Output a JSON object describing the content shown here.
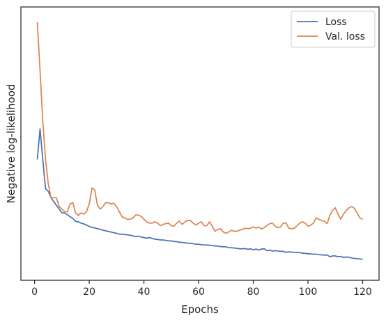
{
  "chart_data": {
    "type": "line",
    "title": "",
    "xlabel": "Epochs",
    "ylabel": "Negative log-likelihood",
    "xlim": [
      -5,
      126
    ],
    "ylim": [
      0,
      1
    ],
    "y_scale_note": "no y tick labels shown; y values are relative (0 = bottom, 1 = top of axes)",
    "x_ticks": [
      0,
      20,
      40,
      60,
      80,
      100,
      120
    ],
    "grid": false,
    "legend": "top-right",
    "series": [
      {
        "name": "Loss",
        "color": "#4c72b0",
        "x": [
          1,
          2,
          3,
          4,
          5,
          6,
          7,
          8,
          9,
          10,
          11,
          12,
          13,
          14,
          15,
          16,
          17,
          18,
          19,
          20,
          21,
          22,
          23,
          24,
          25,
          26,
          27,
          28,
          29,
          30,
          31,
          32,
          33,
          34,
          35,
          36,
          37,
          38,
          39,
          40,
          41,
          42,
          43,
          44,
          45,
          46,
          47,
          48,
          49,
          50,
          51,
          52,
          53,
          54,
          55,
          56,
          57,
          58,
          59,
          60,
          61,
          62,
          63,
          64,
          65,
          66,
          67,
          68,
          69,
          70,
          71,
          72,
          73,
          74,
          75,
          76,
          77,
          78,
          79,
          80,
          81,
          82,
          83,
          84,
          85,
          86,
          87,
          88,
          89,
          90,
          91,
          92,
          93,
          94,
          95,
          96,
          97,
          98,
          99,
          100,
          101,
          102,
          103,
          104,
          105,
          106,
          107,
          108,
          109,
          110,
          111,
          112,
          113,
          114,
          115,
          116,
          117,
          118,
          119,
          120
        ],
        "y": [
          0.45,
          0.57,
          0.45,
          0.335,
          0.325,
          0.3,
          0.285,
          0.27,
          0.255,
          0.24,
          0.24,
          0.233,
          0.225,
          0.219,
          0.207,
          0.205,
          0.2,
          0.197,
          0.192,
          0.187,
          0.183,
          0.181,
          0.178,
          0.176,
          0.172,
          0.17,
          0.167,
          0.165,
          0.162,
          0.16,
          0.157,
          0.156,
          0.155,
          0.154,
          0.152,
          0.15,
          0.147,
          0.149,
          0.145,
          0.143,
          0.141,
          0.143,
          0.14,
          0.137,
          0.136,
          0.134,
          0.134,
          0.132,
          0.13,
          0.13,
          0.128,
          0.127,
          0.125,
          0.124,
          0.123,
          0.121,
          0.121,
          0.119,
          0.117,
          0.117,
          0.115,
          0.114,
          0.114,
          0.113,
          0.112,
          0.11,
          0.11,
          0.108,
          0.107,
          0.107,
          0.104,
          0.103,
          0.102,
          0.101,
          0.099,
          0.099,
          0.1,
          0.097,
          0.099,
          0.095,
          0.098,
          0.094,
          0.098,
          0.099,
          0.092,
          0.094,
          0.09,
          0.092,
          0.09,
          0.089,
          0.089,
          0.085,
          0.087,
          0.086,
          0.085,
          0.085,
          0.084,
          0.082,
          0.081,
          0.08,
          0.079,
          0.078,
          0.078,
          0.076,
          0.075,
          0.074,
          0.075,
          0.068,
          0.071,
          0.071,
          0.068,
          0.069,
          0.065,
          0.067,
          0.066,
          0.063,
          0.061,
          0.06,
          0.059,
          0.058
        ]
      },
      {
        "name": "Val. loss",
        "color": "#dd8452",
        "x": [
          1,
          2,
          3,
          4,
          5,
          6,
          7,
          8,
          9,
          10,
          11,
          12,
          13,
          14,
          15,
          16,
          17,
          18,
          19,
          20,
          21,
          22,
          23,
          24,
          25,
          26,
          27,
          28,
          29,
          30,
          31,
          32,
          33,
          34,
          35,
          36,
          37,
          38,
          39,
          40,
          41,
          42,
          43,
          44,
          45,
          46,
          47,
          48,
          49,
          50,
          51,
          52,
          53,
          54,
          55,
          56,
          57,
          58,
          59,
          60,
          61,
          62,
          63,
          64,
          65,
          66,
          67,
          68,
          69,
          70,
          71,
          72,
          73,
          74,
          75,
          76,
          77,
          78,
          79,
          80,
          81,
          82,
          83,
          84,
          85,
          86,
          87,
          88,
          89,
          90,
          91,
          92,
          93,
          94,
          95,
          96,
          97,
          98,
          99,
          100,
          101,
          102,
          103,
          104,
          105,
          106,
          107,
          108,
          109,
          110,
          111,
          112,
          113,
          114,
          115,
          116,
          117,
          118,
          119,
          120
        ],
        "y": [
          0.99,
          0.8,
          0.6,
          0.45,
          0.355,
          0.3,
          0.3,
          0.3,
          0.265,
          0.255,
          0.245,
          0.245,
          0.275,
          0.28,
          0.24,
          0.23,
          0.24,
          0.235,
          0.245,
          0.275,
          0.338,
          0.33,
          0.27,
          0.255,
          0.265,
          0.28,
          0.28,
          0.275,
          0.278,
          0.265,
          0.245,
          0.225,
          0.22,
          0.215,
          0.215,
          0.22,
          0.232,
          0.232,
          0.226,
          0.215,
          0.205,
          0.2,
          0.2,
          0.205,
          0.2,
          0.19,
          0.195,
          0.198,
          0.2,
          0.19,
          0.188,
          0.2,
          0.208,
          0.195,
          0.205,
          0.21,
          0.21,
          0.2,
          0.192,
          0.2,
          0.205,
          0.19,
          0.19,
          0.205,
          0.188,
          0.168,
          0.175,
          0.178,
          0.165,
          0.16,
          0.165,
          0.172,
          0.168,
          0.168,
          0.172,
          0.175,
          0.18,
          0.178,
          0.18,
          0.185,
          0.18,
          0.185,
          0.177,
          0.182,
          0.19,
          0.198,
          0.2,
          0.188,
          0.182,
          0.185,
          0.2,
          0.2,
          0.18,
          0.178,
          0.18,
          0.19,
          0.2,
          0.205,
          0.2,
          0.188,
          0.192,
          0.2,
          0.22,
          0.215,
          0.21,
          0.208,
          0.198,
          0.23,
          0.25,
          0.26,
          0.235,
          0.215,
          0.235,
          0.25,
          0.26,
          0.265,
          0.258,
          0.24,
          0.22,
          0.215
        ]
      }
    ]
  }
}
